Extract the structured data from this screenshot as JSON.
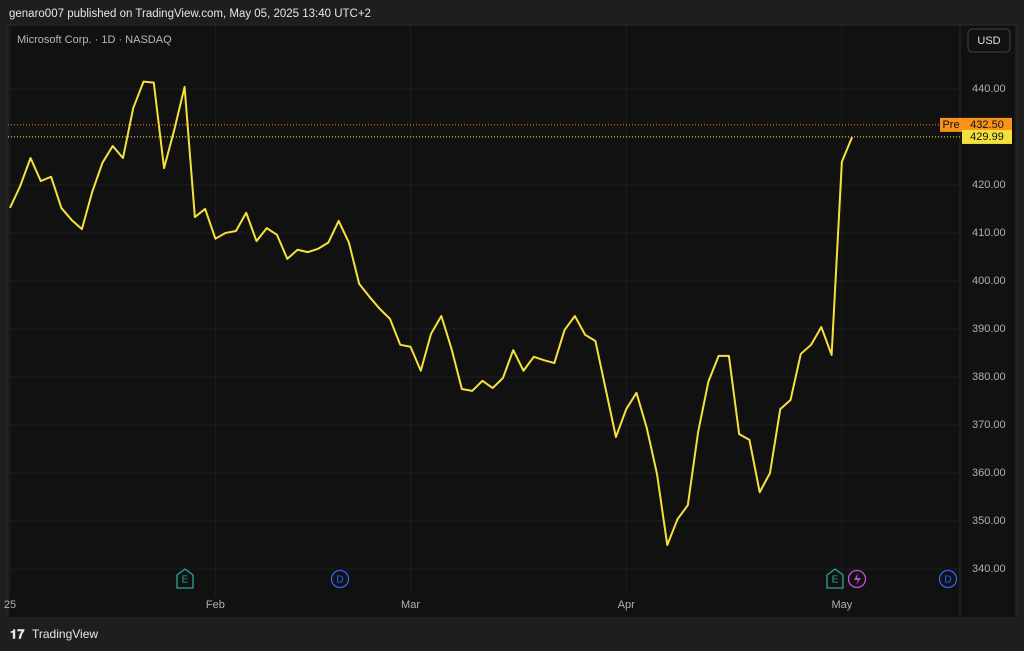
{
  "header": "genaro007 published on TradingView.com, May 05, 2025 13:40 UTC+2",
  "footer_brand": "TradingView",
  "currency_button": "USD",
  "chart_data": {
    "type": "line",
    "title": "Microsoft Corp. · 1D · NASDAQ",
    "categories": [
      "25",
      null,
      null,
      null,
      null,
      null,
      null,
      null,
      null,
      null,
      null,
      null,
      null,
      null,
      null,
      null,
      null,
      null,
      null,
      null,
      "Feb",
      null,
      null,
      null,
      null,
      null,
      null,
      null,
      null,
      null,
      null,
      null,
      null,
      null,
      null,
      null,
      null,
      null,
      null,
      "Mar",
      null,
      null,
      null,
      null,
      null,
      null,
      null,
      null,
      null,
      null,
      null,
      null,
      null,
      null,
      null,
      null,
      null,
      null,
      null,
      null,
      "Apr",
      null,
      null,
      null,
      null,
      null,
      null,
      null,
      null,
      null,
      null,
      null,
      null,
      null,
      null,
      null,
      null,
      null,
      null,
      null,
      null,
      "May",
      null
    ],
    "series": [
      {
        "name": "Microsoft Corp.",
        "color": "#f5e13b",
        "values": [
          415.2,
          419.8,
          425.6,
          420.8,
          421.7,
          415.2,
          412.7,
          410.8,
          418.5,
          424.6,
          428.1,
          425.6,
          436.0,
          441.5,
          441.3,
          423.5,
          431.5,
          440.4,
          413.3,
          415.0,
          408.8,
          410.0,
          410.4,
          414.2,
          408.3,
          411.0,
          409.6,
          404.6,
          406.5,
          406.0,
          406.7,
          408.0,
          412.5,
          408.0,
          399.4,
          396.7,
          394.2,
          392.1,
          386.7,
          386.3,
          381.3,
          389.0,
          392.7,
          385.8,
          377.5,
          377.1,
          379.2,
          377.7,
          379.8,
          385.6,
          381.3,
          384.2,
          383.5,
          382.9,
          389.8,
          392.7,
          388.8,
          387.5,
          377.5,
          367.5,
          373.3,
          376.7,
          369.4,
          359.8,
          345.0,
          350.4,
          353.3,
          368.5,
          379.0,
          384.4,
          384.4,
          368.1,
          366.9,
          356.0,
          360.0,
          373.3,
          375.2,
          384.8,
          386.7,
          390.4,
          384.6,
          424.8,
          429.99
        ]
      }
    ],
    "ylim": [
      334.6,
      453.3
    ],
    "yticks": [
      {
        "value": 340,
        "label": "340.00"
      },
      {
        "value": 350,
        "label": "350.00"
      },
      {
        "value": 360,
        "label": "360.00"
      },
      {
        "value": 370,
        "label": "370.00"
      },
      {
        "value": 380,
        "label": "380.00"
      },
      {
        "value": 390,
        "label": "390.00"
      },
      {
        "value": 400,
        "label": "400.00"
      },
      {
        "value": 410,
        "label": "410.00"
      },
      {
        "value": 420,
        "label": "420.00"
      },
      {
        "value": 430,
        "label": "430.00"
      },
      {
        "value": 440,
        "label": "440.00"
      }
    ],
    "grid": true,
    "last_price": 429.99,
    "premarket": {
      "tag": "Pre",
      "value": 432.5,
      "label": "432.50",
      "color": "#f7931a"
    },
    "events": [
      "E",
      "D",
      "E",
      "D"
    ]
  }
}
